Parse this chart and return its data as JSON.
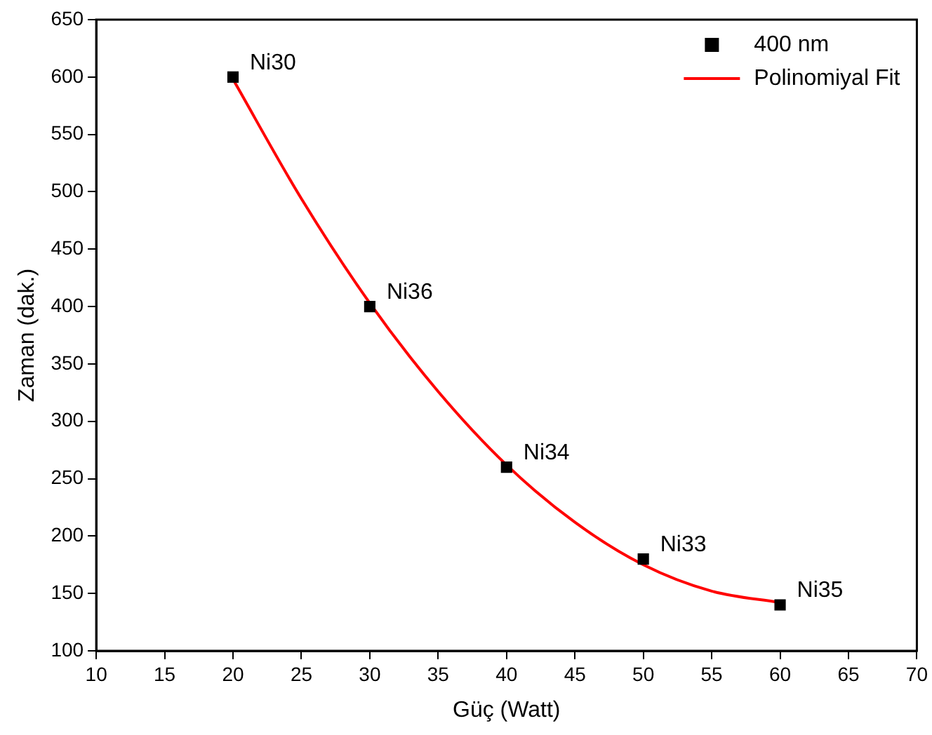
{
  "chart_data": {
    "type": "scatter",
    "xlabel": "Güç (Watt)",
    "ylabel": "Zaman (dak.)",
    "xlim": [
      10,
      70
    ],
    "xticks": [
      10,
      15,
      20,
      25,
      30,
      35,
      40,
      45,
      50,
      55,
      60,
      65,
      70
    ],
    "ylim": [
      100,
      650
    ],
    "yticks": [
      100,
      150,
      200,
      250,
      300,
      350,
      400,
      450,
      500,
      550,
      600,
      650
    ],
    "grid": false,
    "legend": "top right",
    "marker": "square",
    "series": [
      {
        "name": "400 nm",
        "color": "#000000",
        "x": [
          20,
          30,
          40,
          50,
          60
        ],
        "values": [
          600,
          400,
          260,
          180,
          140
        ]
      },
      {
        "name": "Polinomiyal Fit",
        "type": "line",
        "color": "#ff0000",
        "marker": "none",
        "x": [
          20,
          25,
          30,
          35,
          40,
          45,
          50,
          55,
          60
        ],
        "values": [
          598,
          494,
          403,
          326,
          262,
          212,
          175,
          152,
          142
        ]
      }
    ],
    "annotations": [
      {
        "text": "Ni30",
        "x": 20,
        "y": 600
      },
      {
        "text": "Ni36",
        "x": 30,
        "y": 400
      },
      {
        "text": "Ni34",
        "x": 40,
        "y": 260
      },
      {
        "text": "Ni33",
        "x": 50,
        "y": 180
      },
      {
        "text": "Ni35",
        "x": 60,
        "y": 140
      }
    ]
  }
}
